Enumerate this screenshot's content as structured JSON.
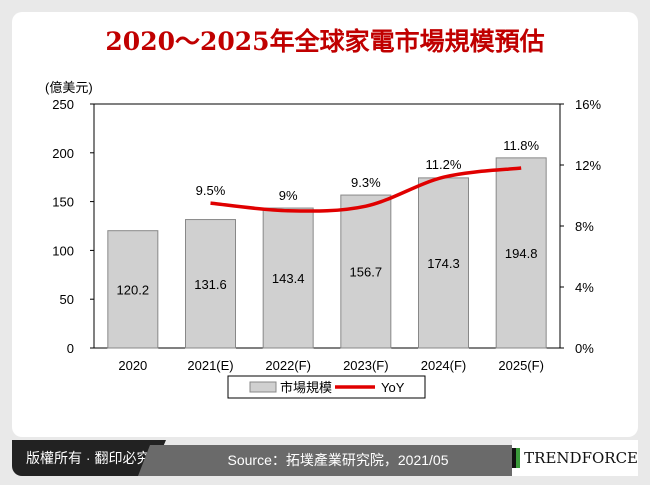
{
  "title": "2020～2025年全球家電市場規模預估",
  "footer": {
    "copyright": "版權所有 · 翻印必究",
    "source": "Source：拓墣產業研究院，2021/05",
    "logo": "TRENDFORCE"
  },
  "chart_data": {
    "type": "bar+line",
    "title": "2020～2025年全球家電市場規模預估",
    "y_unit": "(億美元)",
    "categories": [
      "2020",
      "2021(E)",
      "2022(F)",
      "2023(F)",
      "2024(F)",
      "2025(F)"
    ],
    "series": [
      {
        "name": "市場規模",
        "type": "bar",
        "axis": "left",
        "values": [
          120.2,
          131.6,
          143.4,
          156.7,
          174.3,
          194.8
        ],
        "labels": [
          "120.2",
          "131.6",
          "143.4",
          "156.7",
          "174.3",
          "194.8"
        ],
        "color": "#d0d0d0"
      },
      {
        "name": "YoY",
        "type": "line",
        "axis": "right",
        "values": [
          null,
          9.5,
          9,
          9.3,
          11.2,
          11.8
        ],
        "labels": [
          "",
          "9.5%",
          "9%",
          "9.3%",
          "11.2%",
          "11.8%"
        ],
        "color": "#e00000"
      }
    ],
    "ylim": [
      0,
      250
    ],
    "yticks": [
      "0",
      "50",
      "100",
      "150",
      "200",
      "250"
    ],
    "y2lim": [
      0,
      16
    ],
    "y2ticks": [
      "0%",
      "4%",
      "8%",
      "12%",
      "16%"
    ],
    "legend": "bottom",
    "grid": false
  }
}
